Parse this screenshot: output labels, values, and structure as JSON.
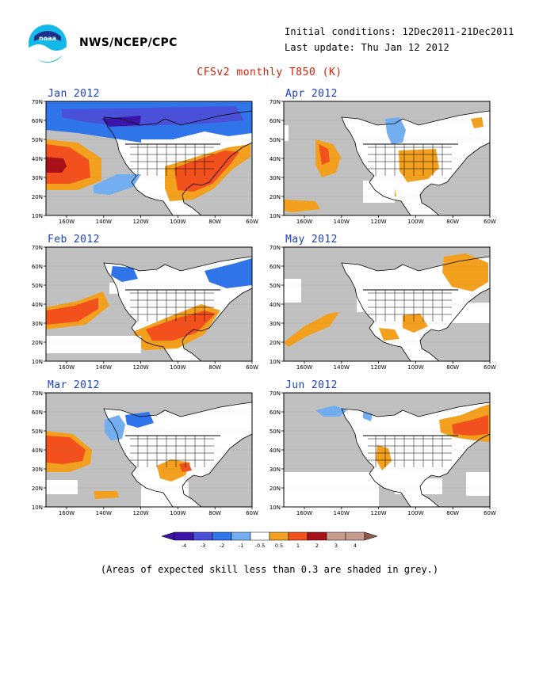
{
  "header": {
    "org": "NWS/NCEP/CPC",
    "initial_conditions": "Initial conditions: 12Dec2011-21Dec2011",
    "last_update": "Last update: Thu Jan 12 2012",
    "title": "CFSv2 monthly T850 (K)",
    "logo_text": "noaa"
  },
  "colors": {
    "grey": "#c0c0c0",
    "land": "#ffffff",
    "neg4": "#3b14a8",
    "neg3": "#4a50d8",
    "neg2": "#2f74e8",
    "neg1": "#72aef0",
    "pos1": "#f2a01e",
    "pos2": "#f2501c",
    "pos3": "#a8101a",
    "pos4": "#c79b8e"
  },
  "axes": {
    "lat_labels": [
      "70N",
      "60N",
      "50N",
      "40N",
      "30N",
      "20N",
      "10N"
    ],
    "lon_labels": [
      "160W",
      "140W",
      "120W",
      "100W",
      "80W",
      "60W"
    ]
  },
  "panels": [
    {
      "title": "Jan 2012"
    },
    {
      "title": "Apr 2012"
    },
    {
      "title": "Feb 2012"
    },
    {
      "title": "May 2012"
    },
    {
      "title": "Mar 2012"
    },
    {
      "title": "Jun 2012"
    }
  ],
  "colorbar": {
    "labels": [
      "-4",
      "-3",
      "-2",
      "-1",
      "-0.5",
      "0.5",
      "1",
      "2",
      "3",
      "4"
    ]
  },
  "footnote": "(Areas of expected skill less than 0.3 are shaded in grey.)"
}
